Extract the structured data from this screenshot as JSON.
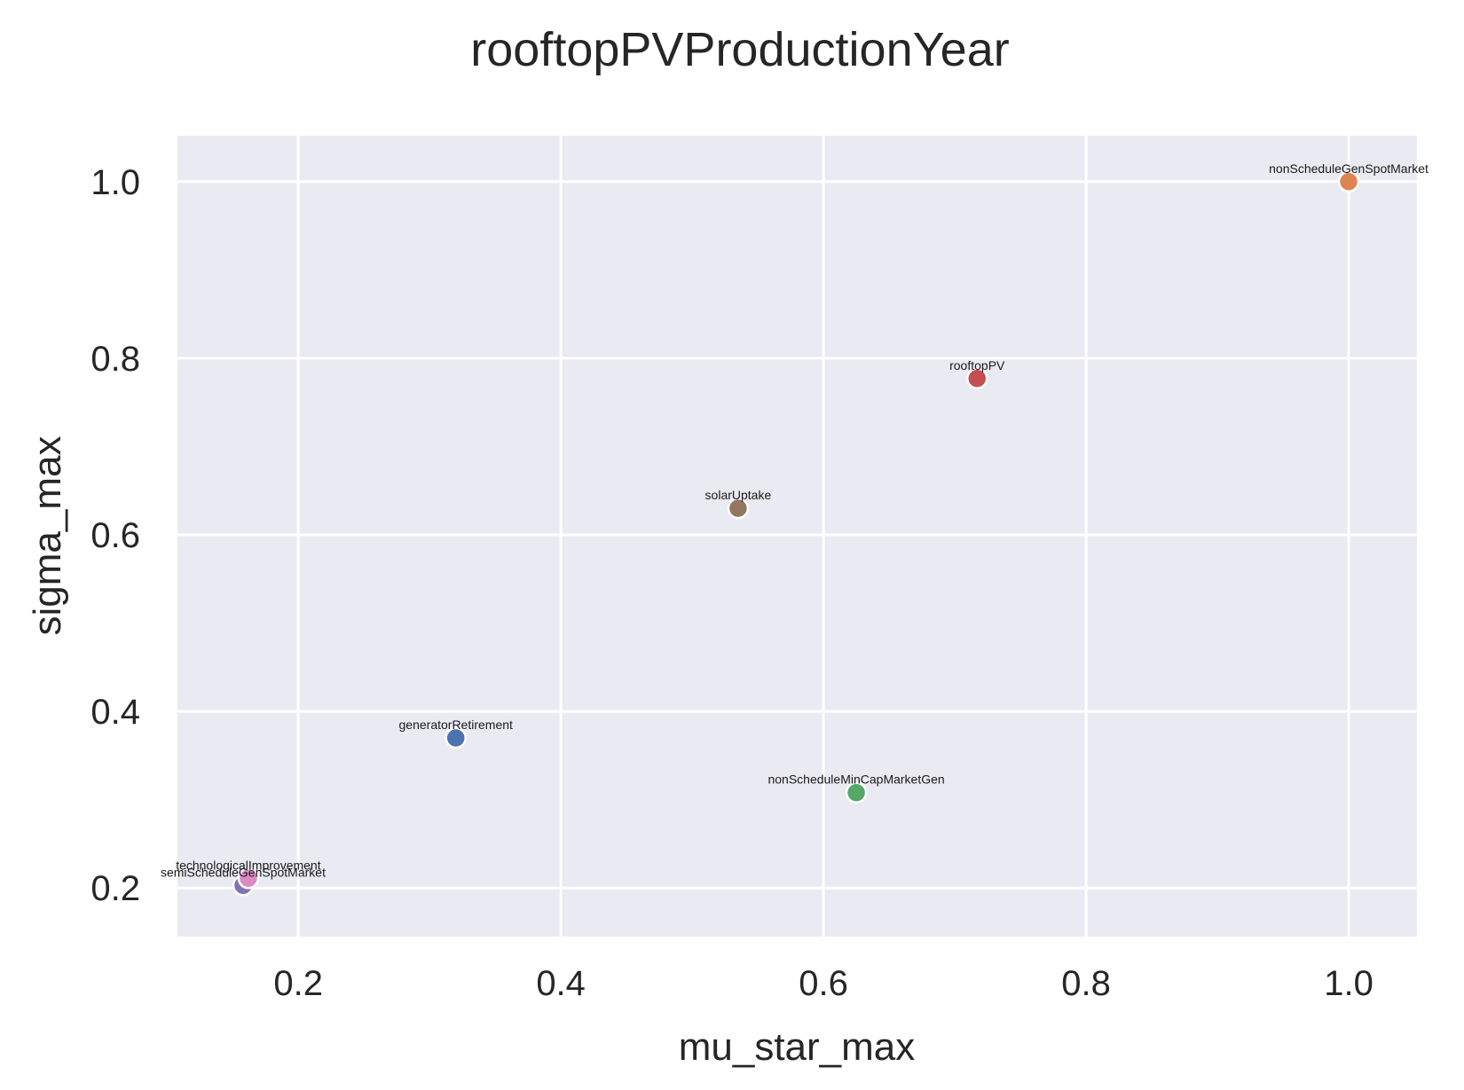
{
  "chart_data": {
    "type": "scatter",
    "title": "rooftopPVProductionYear",
    "xlabel": "mu_star_max",
    "ylabel": "sigma_max",
    "xlim": [
      0.108,
      1.052
    ],
    "ylim": [
      0.145,
      1.052
    ],
    "xticks": [
      "0.2",
      "0.4",
      "0.6",
      "0.8",
      "1.0"
    ],
    "yticks": [
      "0.2",
      "0.4",
      "0.6",
      "0.8",
      "1.0"
    ],
    "grid": true,
    "background": "#eaeaf2",
    "points": [
      {
        "label": "generatorRetirement",
        "x": 0.32,
        "y": 0.37,
        "color": "#4c72b0"
      },
      {
        "label": "nonScheduleGenSpotMarket",
        "x": 1.0,
        "y": 1.0,
        "color": "#dd8452"
      },
      {
        "label": "nonScheduleMinCapMarketGen",
        "x": 0.625,
        "y": 0.308,
        "color": "#55a868"
      },
      {
        "label": "rooftopPV",
        "x": 0.717,
        "y": 0.777,
        "color": "#c44e52"
      },
      {
        "label": "semiScheduleGenSpotMarket",
        "x": 0.158,
        "y": 0.203,
        "color": "#8172b3"
      },
      {
        "label": "solarUptake",
        "x": 0.535,
        "y": 0.63,
        "color": "#937860"
      },
      {
        "label": "technologicalImprovement",
        "x": 0.162,
        "y": 0.211,
        "color": "#da8bc3"
      }
    ]
  }
}
